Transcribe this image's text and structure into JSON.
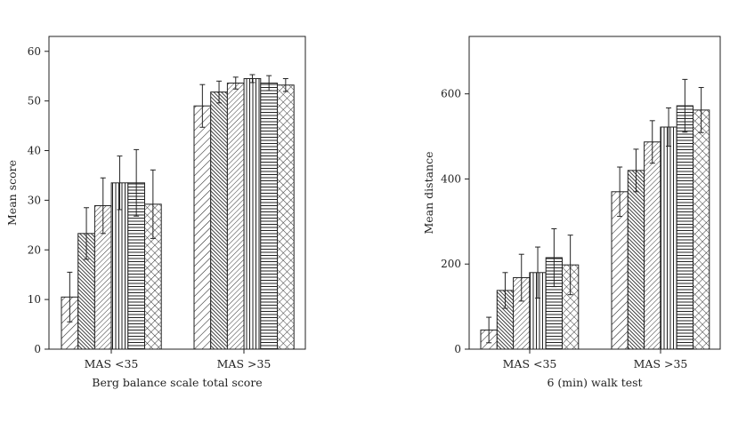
{
  "chart_data": [
    {
      "type": "bar",
      "ylabel": "Mean score",
      "xlabel": "Berg balance scale total score",
      "categories": [
        "MAS <35",
        "MAS >35"
      ],
      "ylim": [
        0,
        63
      ],
      "yticks": [
        0,
        10,
        20,
        30,
        40,
        50,
        60
      ],
      "grid": false,
      "legend": "none",
      "series": [
        {
          "pattern": "diag-right-wide",
          "values": [
            10.5,
            49.0
          ],
          "error": [
            5.0,
            4.3
          ]
        },
        {
          "pattern": "diag-left-dense",
          "values": [
            23.3,
            51.8
          ],
          "error": [
            5.2,
            2.2
          ]
        },
        {
          "pattern": "diag-right-fine",
          "values": [
            28.9,
            53.6
          ],
          "error": [
            5.6,
            1.2
          ]
        },
        {
          "pattern": "vertical-lines",
          "values": [
            33.5,
            54.5
          ],
          "error": [
            5.4,
            0.8
          ]
        },
        {
          "pattern": "horizontal-lines",
          "values": [
            33.5,
            53.6
          ],
          "error": [
            6.7,
            1.5
          ]
        },
        {
          "pattern": "crosshatch",
          "values": [
            29.2,
            53.2
          ],
          "error": [
            6.9,
            1.3
          ]
        }
      ]
    },
    {
      "type": "bar",
      "ylabel": "Mean distance",
      "xlabel": "6 (min) walk test",
      "categories": [
        "MAS <35",
        "MAS >35"
      ],
      "ylim": [
        0,
        735
      ],
      "yticks": [
        0,
        200,
        400,
        600
      ],
      "grid": false,
      "legend": "none",
      "series": [
        {
          "pattern": "diag-right-wide",
          "values": [
            45,
            370
          ],
          "error": [
            30,
            58
          ]
        },
        {
          "pattern": "diag-left-dense",
          "values": [
            138,
            420
          ],
          "error": [
            42,
            50
          ]
        },
        {
          "pattern": "diag-right-fine",
          "values": [
            168,
            487
          ],
          "error": [
            55,
            50
          ]
        },
        {
          "pattern": "vertical-lines",
          "values": [
            180,
            522
          ],
          "error": [
            60,
            45
          ]
        },
        {
          "pattern": "horizontal-lines",
          "values": [
            215,
            572
          ],
          "error": [
            68,
            62
          ]
        },
        {
          "pattern": "crosshatch",
          "values": [
            198,
            562
          ],
          "error": [
            70,
            53
          ]
        }
      ]
    }
  ]
}
